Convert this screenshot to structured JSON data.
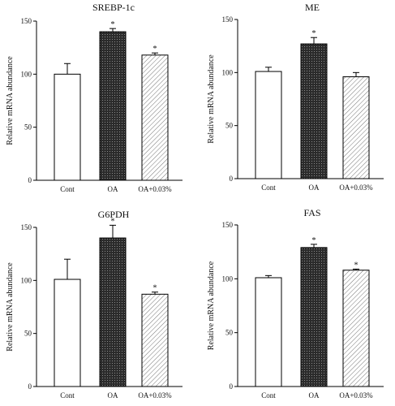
{
  "chart_data": [
    {
      "type": "bar",
      "title": "SREBP-1c",
      "ylabel": "Relative mRNA abundance",
      "ylim": [
        0,
        150
      ],
      "yticks": [
        "0",
        "50",
        "100",
        "150"
      ],
      "categories": [
        "Cont",
        "OA",
        "OA+0.03%"
      ],
      "values": [
        100,
        140,
        118
      ],
      "errors": [
        10,
        3,
        2
      ],
      "significance": [
        "",
        "*",
        "*"
      ]
    },
    {
      "type": "bar",
      "title": "ME",
      "ylabel": "Relative mRNA abundance",
      "ylim": [
        0,
        150
      ],
      "yticks": [
        "0",
        "50",
        "100",
        "150"
      ],
      "categories": [
        "Cont",
        "OA",
        "OA+0.03%"
      ],
      "values": [
        101,
        127,
        96
      ],
      "errors": [
        4,
        6,
        4
      ],
      "significance": [
        "",
        "*",
        ""
      ]
    },
    {
      "type": "bar",
      "title": "G6PDH",
      "ylabel": "Relative mRNA abundance",
      "ylim": [
        0,
        150
      ],
      "yticks": [
        "0",
        "50",
        "100",
        "150"
      ],
      "categories": [
        "Cont",
        "OA",
        "OA+0.03%"
      ],
      "values": [
        101,
        140,
        87
      ],
      "errors": [
        19,
        12,
        2
      ],
      "significance": [
        "",
        "*",
        "*"
      ]
    },
    {
      "type": "bar",
      "title": "FAS",
      "ylabel": "Relative mRNA abundance",
      "ylim": [
        0,
        150
      ],
      "yticks": [
        "0",
        "50",
        "100",
        "150"
      ],
      "categories": [
        "Cont",
        "OA",
        "OA+0.03%"
      ],
      "values": [
        101,
        129,
        108
      ],
      "errors": [
        2,
        3,
        1
      ],
      "significance": [
        "",
        "*",
        "*"
      ]
    }
  ],
  "bar_styles": [
    {
      "fill": "#ffffff",
      "pattern": "none"
    },
    {
      "fill": "#333333",
      "pattern": "dark-grid"
    },
    {
      "fill": "#ffffff",
      "pattern": "diagonal-hatch"
    }
  ]
}
